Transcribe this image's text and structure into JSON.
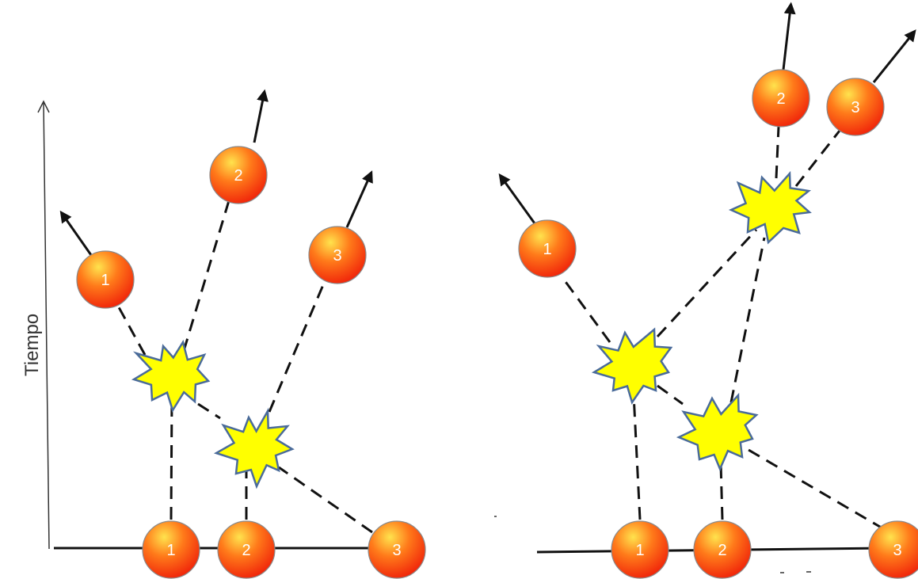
{
  "axis": {
    "label": "Tiempo"
  },
  "left_diagram": {
    "bottom_particles": [
      "1",
      "2",
      "3"
    ],
    "top_particles": [
      "1",
      "2",
      "3"
    ]
  },
  "right_diagram": {
    "bottom_particles": [
      "1",
      "2",
      "3"
    ],
    "top_particles": [
      "1",
      "2",
      "3"
    ]
  },
  "colors": {
    "ball_light": "#ffe34d",
    "ball_mid": "#ff7a1a",
    "ball_dark": "#f0240a",
    "explosion_fill": "#ffff00",
    "explosion_stroke": "#4a6b9a",
    "line": "#111111"
  }
}
